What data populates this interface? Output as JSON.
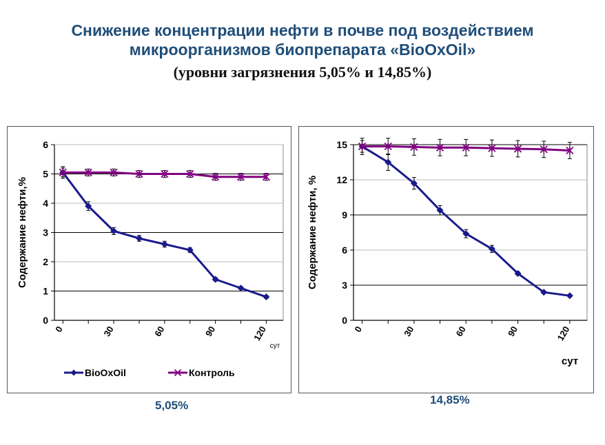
{
  "title": {
    "line1": "Снижение концентрации нефти в почве под воздействием",
    "line2": "микроорганизмов биопрепарата «BioOxOil»",
    "line3": "(уровни загрязнения 5,05% и 14,85%)"
  },
  "colors": {
    "bio": "#1a1a8c",
    "control": "#800080",
    "title": "#1f4e79"
  },
  "chart_data": [
    {
      "type": "line",
      "caption": "5,05%",
      "ylabel": "Содержание нефти,%",
      "xlabel": "сут",
      "ylim": [
        0,
        6
      ],
      "yticks": [
        0,
        1,
        2,
        3,
        4,
        5,
        6
      ],
      "xlim": [
        -5,
        130
      ],
      "xticks": [
        0,
        30,
        60,
        90,
        120
      ],
      "legend_position": "bottom",
      "series": [
        {
          "name": "BioOxOil",
          "marker": "diamond",
          "x": [
            0,
            15,
            30,
            45,
            60,
            75,
            90,
            105,
            120
          ],
          "y": [
            5.05,
            3.9,
            3.05,
            2.8,
            2.6,
            2.4,
            1.4,
            1.1,
            0.8
          ],
          "err": [
            0.2,
            0.15,
            0.12,
            0.1,
            0.1,
            0.08,
            0.06,
            0.05,
            0.05
          ]
        },
        {
          "name": "Контроль",
          "marker": "star",
          "x": [
            0,
            15,
            30,
            45,
            60,
            75,
            90,
            105,
            120
          ],
          "y": [
            5.05,
            5.05,
            5.05,
            5.0,
            5.0,
            5.0,
            4.9,
            4.9,
            4.9
          ],
          "err": [
            0.15,
            0.12,
            0.12,
            0.12,
            0.12,
            0.12,
            0.12,
            0.12,
            0.12
          ]
        }
      ]
    },
    {
      "type": "line",
      "caption": "14,85%",
      "ylabel": "Содержание нефти, %",
      "xlabel": "сут",
      "ylim": [
        0,
        15
      ],
      "yticks": [
        0,
        3,
        6,
        9,
        12,
        15
      ],
      "xlim": [
        -5,
        130
      ],
      "xticks": [
        0,
        30,
        60,
        90,
        120
      ],
      "series": [
        {
          "name": "BioOxOil",
          "marker": "diamond",
          "x": [
            0,
            15,
            30,
            45,
            60,
            75,
            90,
            105,
            120
          ],
          "y": [
            14.85,
            13.5,
            11.7,
            9.4,
            7.4,
            6.1,
            4.0,
            2.4,
            2.1
          ],
          "err": [
            0.5,
            0.7,
            0.5,
            0.4,
            0.35,
            0.3,
            0.15,
            0.1,
            0.1
          ]
        },
        {
          "name": "Контроль",
          "marker": "star",
          "x": [
            0,
            15,
            30,
            45,
            60,
            75,
            90,
            105,
            120
          ],
          "y": [
            14.85,
            14.85,
            14.8,
            14.75,
            14.75,
            14.7,
            14.65,
            14.6,
            14.5
          ],
          "err": [
            0.7,
            0.7,
            0.7,
            0.7,
            0.7,
            0.7,
            0.7,
            0.7,
            0.7
          ]
        }
      ]
    }
  ]
}
